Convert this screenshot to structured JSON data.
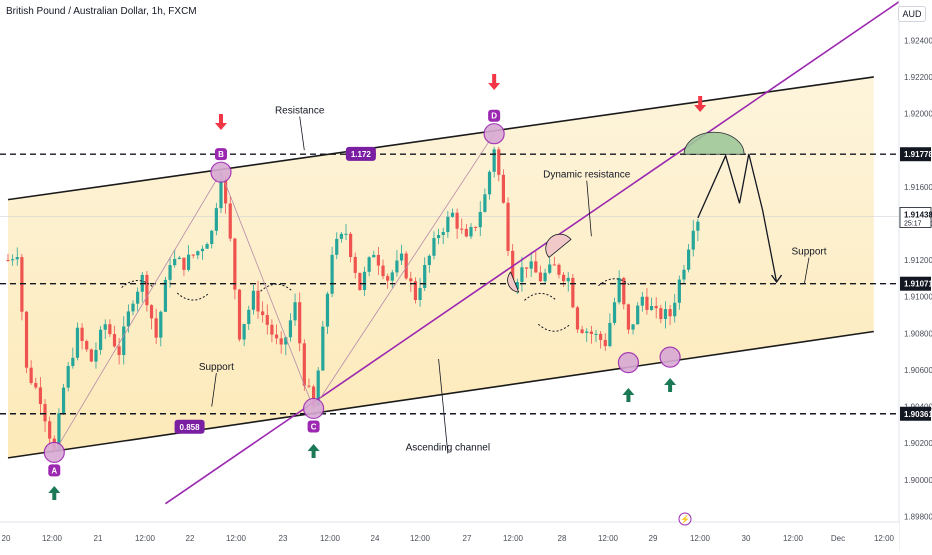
{
  "header": {
    "symbol": "British Pound / Australian Dollar, 1h, FXCM",
    "currency": "AUD"
  },
  "colors": {
    "up": "#26a69a",
    "down": "#ef5350",
    "band": "#fde7b0",
    "channel": "#1a1a1a",
    "dynamic": "#9c27b0",
    "marker": "#9c27b0",
    "arrow_down": "#f23645",
    "arrow_up": "#1b7a55",
    "dome": "#9fc79a"
  },
  "chart_data": {
    "type": "candlestick",
    "title": "British Pound / Australian Dollar, 1h, FXCM",
    "xlabel": "",
    "ylabel": "",
    "ylim": [
      1.8977,
      1.9262
    ],
    "grid": false,
    "y_ticks": [
      "1.92400",
      "1.92200",
      "1.92000",
      "1.91600",
      "1.91400",
      "1.91200",
      "1.91000",
      "1.90800",
      "1.90600",
      "1.90400",
      "1.90200",
      "1.90000",
      "1.89800"
    ],
    "x_ticks": [
      "20",
      "12:00",
      "21",
      "12:00",
      "22",
      "12:00",
      "23",
      "12:00",
      "24",
      "12:00",
      "27",
      "12:00",
      "28",
      "12:00",
      "29",
      "12:00",
      "30",
      "12:00",
      "Dec",
      "12:00"
    ],
    "price_labels": [
      {
        "text": "1.91778",
        "value": 1.91778,
        "style": "level"
      },
      {
        "text": "1.91438",
        "sub": "25:17",
        "value": 1.91438,
        "style": "current"
      },
      {
        "text": "1.91071",
        "value": 1.91071,
        "style": "level"
      },
      {
        "text": "1.90361",
        "value": 1.90361,
        "style": "level"
      }
    ],
    "horizontal_levels": [
      1.91778,
      1.91071,
      1.90361
    ],
    "channel": {
      "upper": [
        {
          "x": 0,
          "y": 1.9153
        },
        {
          "x": 187,
          "y": 1.922
        }
      ],
      "lower": [
        {
          "x": 0,
          "y": 1.9012
        },
        {
          "x": 187,
          "y": 1.9081
        }
      ]
    },
    "dynamic_resistance": [
      {
        "x": 34,
        "y": 1.8987
      },
      {
        "x": 193,
        "y": 1.9262
      }
    ],
    "swing_path": [
      {
        "x": 10,
        "y": 1.9015
      },
      {
        "x": 46,
        "y": 1.9168
      },
      {
        "x": 66,
        "y": 1.9039
      },
      {
        "x": 105,
        "y": 1.9189
      }
    ],
    "points": [
      {
        "label": "A",
        "x": 10,
        "y": 1.9015
      },
      {
        "label": "B",
        "x": 46,
        "y": 1.9168
      },
      {
        "label": "C",
        "x": 66,
        "y": 1.9039
      },
      {
        "label": "D",
        "x": 105,
        "y": 1.9189
      }
    ],
    "touches": [
      {
        "x": 134,
        "y": 1.9064
      },
      {
        "x": 143,
        "y": 1.9067
      }
    ],
    "value_boxes": [
      {
        "text": "1.172",
        "x": 76,
        "y": 1.9178
      },
      {
        "text": "0.858",
        "x": 39,
        "y": 1.9029
      }
    ],
    "forecast_path": [
      {
        "x": 149,
        "y": 1.9143
      },
      {
        "x": 155,
        "y": 1.9177
      },
      {
        "x": 158,
        "y": 1.9151
      },
      {
        "x": 160,
        "y": 1.9178
      },
      {
        "x": 163,
        "y": 1.9147
      },
      {
        "x": 166,
        "y": 1.9108
      }
    ],
    "annotations": [
      {
        "text": "Resistance",
        "x": 63,
        "y": 1.92,
        "to_x": 64,
        "to_y": 1.918
      },
      {
        "text": "Dynamic resistance",
        "x": 125,
        "y": 1.9165,
        "to_x": 126,
        "to_y": 1.9133
      },
      {
        "text": "Support",
        "x": 173,
        "y": 1.9123,
        "to_x": 172,
        "to_y": 1.9107
      },
      {
        "text": "Support",
        "x": 45,
        "y": 1.906,
        "to_x": 44,
        "to_y": 1.904
      },
      {
        "text": "Ascending channel",
        "x": 95,
        "y": 1.9016,
        "to_x": 93,
        "to_y": 1.9066
      }
    ],
    "candle_count": 190,
    "candles": []
  },
  "footer": {
    "bolt": "⚡"
  }
}
